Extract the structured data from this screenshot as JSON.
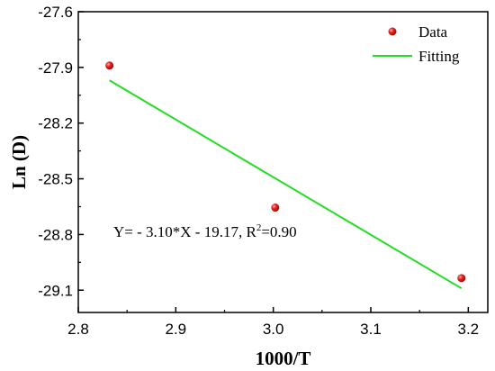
{
  "chart_data": {
    "type": "scatter",
    "xlabel": "1000/T",
    "ylabel": "Ln (D)",
    "xlim": [
      2.8,
      3.22
    ],
    "ylim": [
      -29.22,
      -27.6
    ],
    "x_ticks": [
      2.8,
      2.9,
      3.0,
      3.1,
      3.2
    ],
    "x_tick_labels": [
      "2.8",
      "2.9",
      "3.0",
      "3.1",
      "3.2"
    ],
    "y_ticks": [
      -27.6,
      -27.9,
      -28.2,
      -28.5,
      -28.8,
      -29.1
    ],
    "y_tick_labels": [
      "-27.6",
      "-27.9",
      "-28.2",
      "-28.5",
      "-28.8",
      "-29.1"
    ],
    "grid": false,
    "legend_position": "top-right",
    "series": [
      {
        "name": "Data",
        "kind": "scatter",
        "color": "#e8231e",
        "x": [
          2.832,
          3.002,
          3.193
        ],
        "y": [
          -27.89,
          -28.655,
          -29.035
        ]
      },
      {
        "name": "Fitting",
        "kind": "line",
        "color": "#22dd22",
        "x": [
          2.832,
          3.193
        ],
        "y": [
          -27.97,
          -29.09
        ]
      }
    ],
    "annotation": {
      "main": "Y= - 3.10*X - 19.17,  R",
      "sup": "2",
      "tail": "=0.90"
    }
  }
}
